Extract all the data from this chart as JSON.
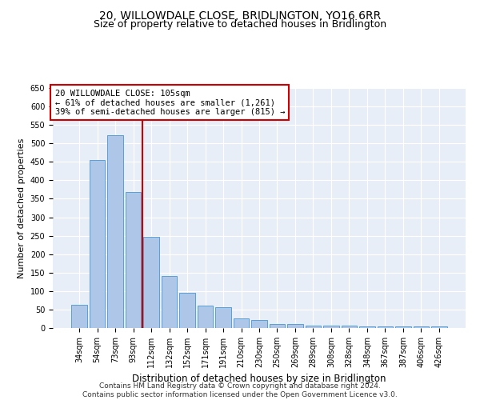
{
  "title": "20, WILLOWDALE CLOSE, BRIDLINGTON, YO16 6RR",
  "subtitle": "Size of property relative to detached houses in Bridlington",
  "xlabel": "Distribution of detached houses by size in Bridlington",
  "ylabel": "Number of detached properties",
  "categories": [
    "34sqm",
    "54sqm",
    "73sqm",
    "93sqm",
    "112sqm",
    "132sqm",
    "152sqm",
    "171sqm",
    "191sqm",
    "210sqm",
    "230sqm",
    "250sqm",
    "269sqm",
    "289sqm",
    "308sqm",
    "328sqm",
    "348sqm",
    "367sqm",
    "387sqm",
    "406sqm",
    "426sqm"
  ],
  "values": [
    62,
    456,
    522,
    368,
    247,
    140,
    95,
    60,
    57,
    25,
    22,
    10,
    11,
    7,
    6,
    6,
    4,
    4,
    5,
    4,
    4
  ],
  "bar_color": "#aec6e8",
  "bar_edge_color": "#5a9fd4",
  "background_color": "#e8eef7",
  "grid_color": "#ffffff",
  "red_line_x": 3.5,
  "annotation_line1": "20 WILLOWDALE CLOSE: 105sqm",
  "annotation_line2": "← 61% of detached houses are smaller (1,261)",
  "annotation_line3": "39% of semi-detached houses are larger (815) →",
  "annotation_box_color": "#ffffff",
  "annotation_box_edge_color": "#cc0000",
  "ylim": [
    0,
    650
  ],
  "yticks": [
    0,
    50,
    100,
    150,
    200,
    250,
    300,
    350,
    400,
    450,
    500,
    550,
    600,
    650
  ],
  "footer": "Contains HM Land Registry data © Crown copyright and database right 2024.\nContains public sector information licensed under the Open Government Licence v3.0.",
  "title_fontsize": 10,
  "subtitle_fontsize": 9,
  "annotation_fontsize": 7.5,
  "footer_fontsize": 6.5,
  "tick_fontsize": 7,
  "ylabel_fontsize": 8,
  "xlabel_fontsize": 8.5
}
